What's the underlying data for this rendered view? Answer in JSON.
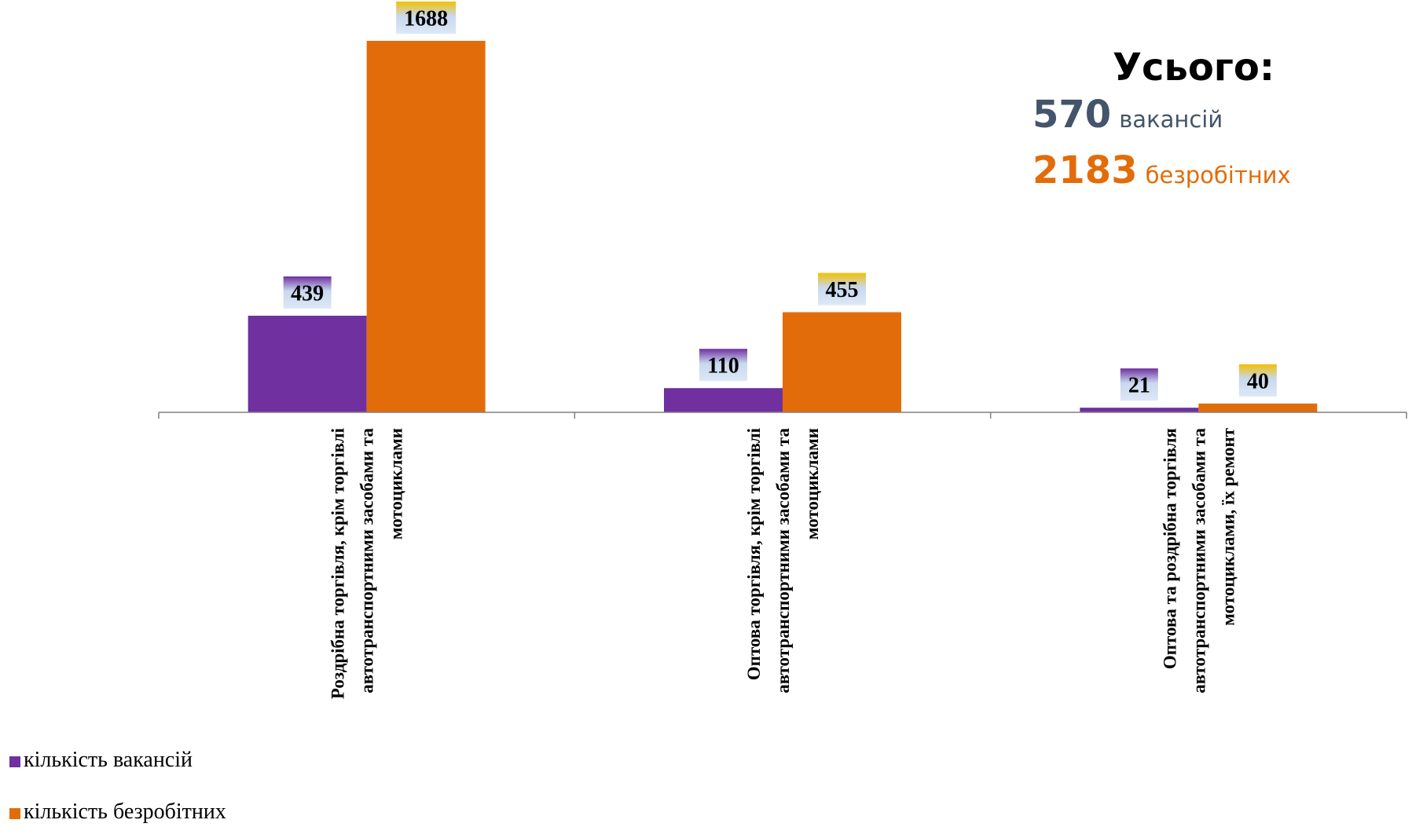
{
  "colors": {
    "vacancies": "#7030a0",
    "unemployed": "#e36c0a",
    "summary_vacancies": "#44546a",
    "summary_unemployed": "#e36c0a",
    "axis": "#808080"
  },
  "summary": {
    "title": "Усього:",
    "vacancies_value": "570",
    "vacancies_word": "вакансій",
    "unemployed_value": "2183",
    "unemployed_word": "безробітних"
  },
  "legend": {
    "items": [
      {
        "label": "кількість вакансій",
        "color": "#7030a0"
      },
      {
        "label": "кількість безробітних",
        "color": "#e36c0a"
      }
    ]
  },
  "chart_data": {
    "type": "bar",
    "categories": [
      [
        "Роздрібна торгівля, крім торгівлі",
        "автотранспортними засобами та",
        "мотоциклами"
      ],
      [
        "Оптова торгівля, крім торгівлі",
        "автотранспортними засобами та",
        "мотоциклами"
      ],
      [
        "Оптова та роздрібна торгівля",
        "автотранспортними засобами та",
        "мотоциклами, їх ремонт"
      ]
    ],
    "series": [
      {
        "name": "кількість вакансій",
        "values": [
          439,
          110,
          21
        ],
        "color": "#7030a0"
      },
      {
        "name": "кількість безробітних",
        "values": [
          1688,
          455,
          40
        ],
        "color": "#e36c0a"
      }
    ],
    "ylim": [
      0,
      1688
    ],
    "grid": false,
    "legend_position": "bottom-left"
  }
}
